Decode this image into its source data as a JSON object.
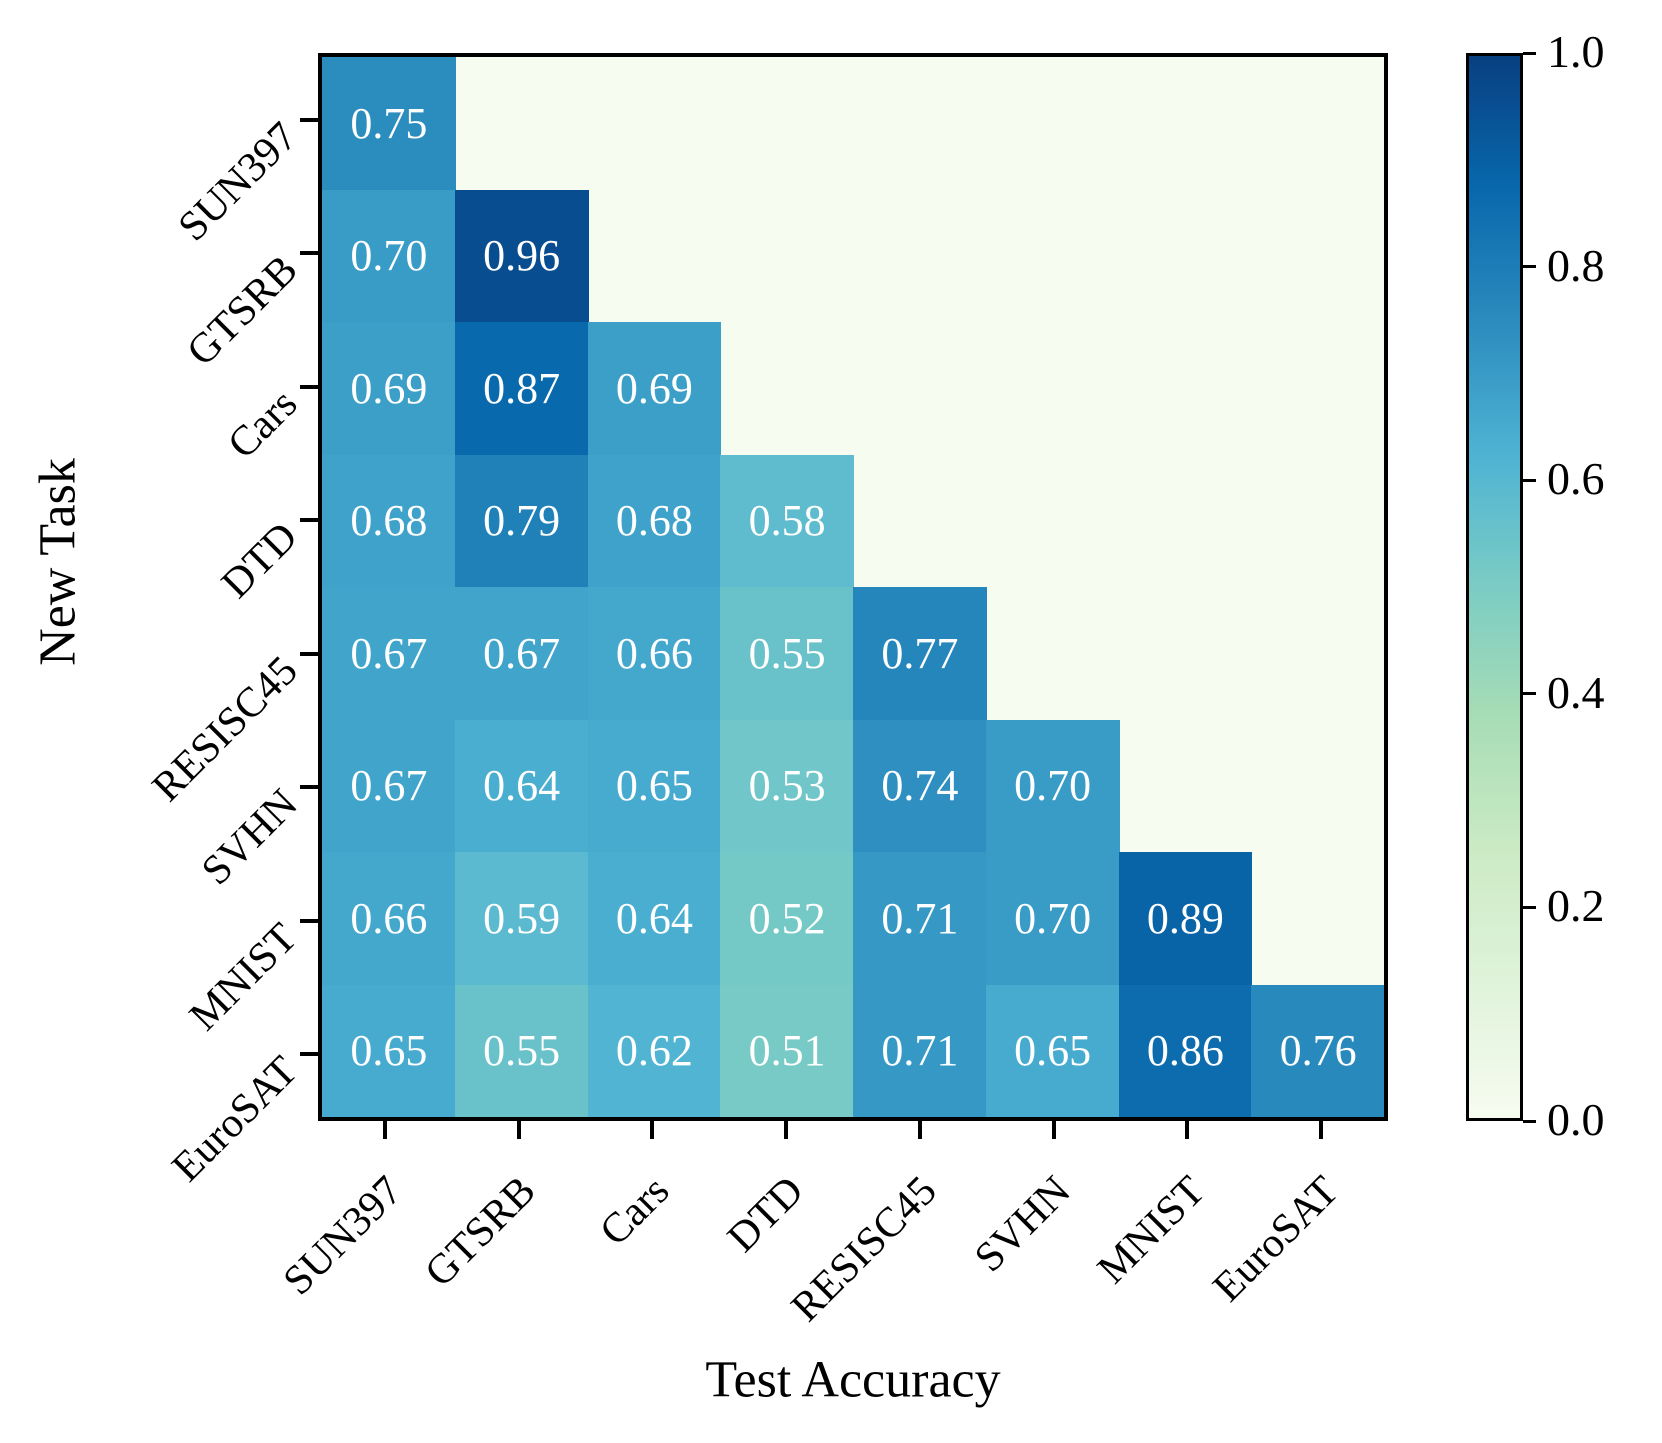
{
  "chart_data": {
    "type": "heatmap",
    "title": "",
    "xlabel": "Test Accuracy",
    "ylabel": "New Task",
    "shape": "lower-triangular",
    "x_categories": [
      "SUN397",
      "GTSRB",
      "Cars",
      "DTD",
      "RESISC45",
      "SVHN",
      "MNIST",
      "EuroSAT"
    ],
    "y_categories": [
      "SUN397",
      "GTSRB",
      "Cars",
      "DTD",
      "RESISC45",
      "SVHN",
      "MNIST",
      "EuroSAT"
    ],
    "rows": [
      [
        0.75
      ],
      [
        0.7,
        0.96
      ],
      [
        0.69,
        0.87,
        0.69
      ],
      [
        0.68,
        0.79,
        0.68,
        0.58
      ],
      [
        0.67,
        0.67,
        0.66,
        0.55,
        0.77
      ],
      [
        0.67,
        0.64,
        0.65,
        0.53,
        0.74,
        0.7
      ],
      [
        0.66,
        0.59,
        0.64,
        0.52,
        0.71,
        0.7,
        0.89
      ],
      [
        0.65,
        0.55,
        0.62,
        0.51,
        0.71,
        0.65,
        0.86,
        0.76
      ]
    ],
    "value_range": [
      0.0,
      1.0
    ],
    "cell_text_color": "#ffffff",
    "empty_cell_color": "#f7fcf0",
    "grid": "off",
    "colormap": {
      "name": "GnBu",
      "stops": [
        "#f7fcf0",
        "#e0f3db",
        "#ccebc5",
        "#a8ddb5",
        "#7bccc4",
        "#4eb3d3",
        "#2b8cbe",
        "#0868ac",
        "#084081"
      ]
    },
    "colorbar": {
      "position": "right",
      "tick_values": [
        1.0,
        0.8,
        0.6,
        0.4,
        0.2,
        0.0
      ],
      "tick_labels": [
        "1.0",
        "0.8",
        "0.6",
        "0.4",
        "0.2",
        "0.0"
      ]
    }
  }
}
